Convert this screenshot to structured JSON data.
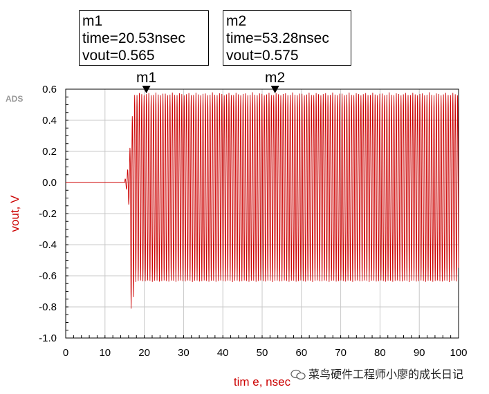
{
  "chart_data": {
    "type": "line",
    "title": "",
    "xlabel": "tim e, nsec",
    "ylabel": "vout, V",
    "xlim": [
      0,
      100
    ],
    "ylim": [
      -1.0,
      0.6
    ],
    "xticks": [
      "0",
      "10",
      "20",
      "30",
      "40",
      "50",
      "60",
      "70",
      "80",
      "90",
      "100"
    ],
    "yticks": [
      "0.6",
      "0.4",
      "0.2",
      "0.0",
      "-0.2",
      "-0.4",
      "-0.6",
      "-0.8",
      "-1.0"
    ],
    "grid": true,
    "series": [
      {
        "name": "vout",
        "color": "#cc0000",
        "description_points": {
          "flat_until": 15.0,
          "startup_end": 16.5,
          "min_spike": -0.83,
          "max_steady": 0.58,
          "min_steady": -0.64,
          "period_ns": 0.6
        }
      }
    ],
    "markers": [
      {
        "name": "m1",
        "time": "time=20.53nsec",
        "vout": "vout=0.565",
        "x": 20.53,
        "y": 0.565
      },
      {
        "name": "m2",
        "time": "time=53.28nsec",
        "vout": "vout=0.575",
        "x": 53.28,
        "y": 0.575
      }
    ]
  },
  "ads_label": "ADS",
  "watermark": "菜鸟硬件工程师小廖的成长日记",
  "accent_color": "#cc0000"
}
